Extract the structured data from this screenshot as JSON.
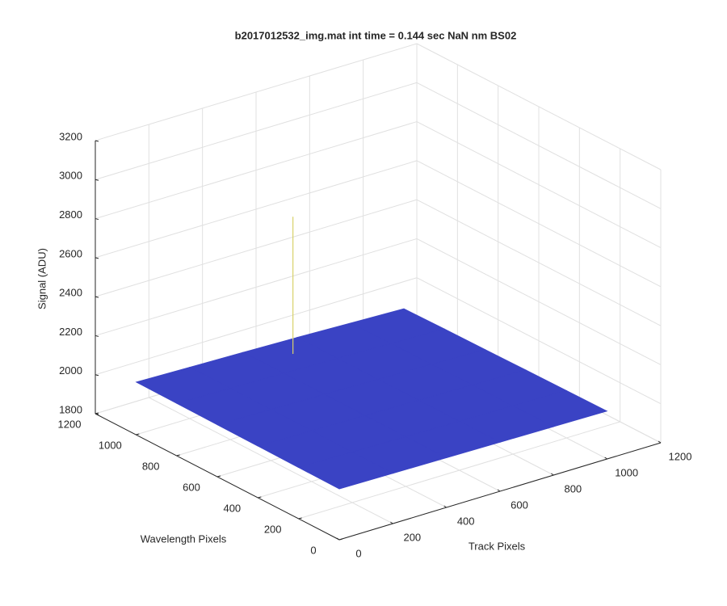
{
  "chart_data": {
    "type": "surface",
    "title": "b2017012532_img.mat int time = 0.144 sec  NaN nm BS02",
    "xlabel": "Track Pixels",
    "ylabel": "Wavelength Pixels",
    "zlabel": "Signal (ADU)",
    "x": [
      0,
      200,
      400,
      600,
      800,
      1000
    ],
    "y": [
      0,
      200,
      400,
      600,
      800,
      1000
    ],
    "z": [
      [
        2060,
        2057,
        2054,
        2051,
        2048,
        2045
      ],
      [
        2062,
        2058,
        2055,
        2051,
        2047,
        2043
      ],
      [
        2064,
        2060,
        2055,
        2051,
        2046,
        2041
      ],
      [
        2066,
        2061,
        2056,
        2050,
        2044,
        2038
      ],
      [
        2068,
        2062,
        2056,
        2050,
        2043,
        2036
      ],
      [
        2070,
        2063,
        2057,
        2050,
        2041,
        2032
      ]
    ],
    "spike": {
      "x": 510,
      "y": 900,
      "z": 2760
    },
    "color": "#3a43c4",
    "xlim": [
      0,
      1200
    ],
    "ylim": [
      0,
      1200
    ],
    "zlim": [
      1800,
      3200
    ],
    "xticks": [
      0,
      200,
      400,
      600,
      800,
      1000,
      1200
    ],
    "yticks": [
      0,
      200,
      400,
      600,
      800,
      1000,
      1200
    ],
    "zticks": [
      1800,
      2000,
      2200,
      2400,
      2600,
      2800,
      3000,
      3200
    ],
    "grid": true
  }
}
